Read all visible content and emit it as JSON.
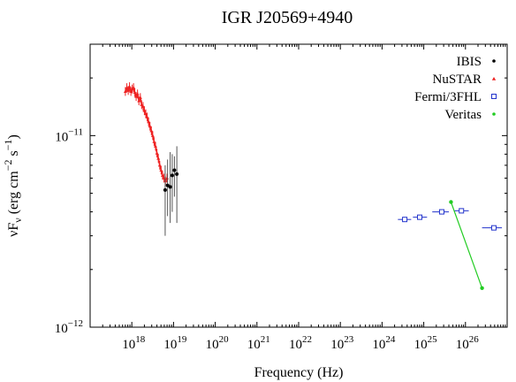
{
  "chart_data": {
    "type": "scatter",
    "title": "IGR J20569+4940",
    "xlabel": "Frequency (Hz)",
    "ylabel_main": "νF",
    "ylabel_sub": "ν",
    "ylabel_rest": " (erg cm",
    "ylabel_exp1": "−2",
    "ylabel_mid": " s",
    "ylabel_exp2": "−1",
    "ylabel_end": ")",
    "x_scale": "log",
    "y_scale": "log",
    "xlim": [
      1e+17,
      1e+27
    ],
    "ylim": [
      1e-12,
      3e-11
    ],
    "x_ticks": [
      {
        "value": 1e+18,
        "base": "10",
        "exp": "18"
      },
      {
        "value": 1e+19,
        "base": "10",
        "exp": "19"
      },
      {
        "value": 1e+20,
        "base": "10",
        "exp": "20"
      },
      {
        "value": 1e+21,
        "base": "10",
        "exp": "21"
      },
      {
        "value": 1e+22,
        "base": "10",
        "exp": "22"
      },
      {
        "value": 1e+23,
        "base": "10",
        "exp": "23"
      },
      {
        "value": 1e+24,
        "base": "10",
        "exp": "24"
      },
      {
        "value": 1e+25,
        "base": "10",
        "exp": "25"
      },
      {
        "value": 1e+26,
        "base": "10",
        "exp": "26"
      }
    ],
    "y_ticks": [
      {
        "value": 1e-12,
        "base": "10",
        "exp": "−12"
      },
      {
        "value": 1e-11,
        "base": "10",
        "exp": "−11"
      }
    ],
    "legend_position": "top-right",
    "series": [
      {
        "name": "IBIS",
        "color": "#000000",
        "marker": "dot",
        "points": [
          {
            "x": 6.3e+18,
            "y": 5.2e-12,
            "ylo": 3e-12,
            "yhi": 7e-12
          },
          {
            "x": 7.2e+18,
            "y": 5.5e-12,
            "ylo": 3.8e-12,
            "yhi": 7.5e-12
          },
          {
            "x": 8.3e+18,
            "y": 5.4e-12,
            "ylo": 3.5e-12,
            "yhi": 8.2e-12
          },
          {
            "x": 9.3e+18,
            "y": 6.2e-12,
            "ylo": 4e-12,
            "yhi": 8e-12
          },
          {
            "x": 1.05e+19,
            "y": 6.6e-12,
            "ylo": 4.8e-12,
            "yhi": 7.8e-12
          },
          {
            "x": 1.2e+19,
            "y": 6.3e-12,
            "ylo": 3.5e-12,
            "yhi": 8.8e-12
          }
        ]
      },
      {
        "name": "NuSTAR",
        "color": "#ee2222",
        "marker": "triangle",
        "points": [
          {
            "x": 7e+17,
            "y": 1.7e-11
          },
          {
            "x": 7.6e+17,
            "y": 1.78e-11
          },
          {
            "x": 8.2e+17,
            "y": 1.72e-11
          },
          {
            "x": 8.8e+17,
            "y": 1.8e-11
          },
          {
            "x": 9.5e+17,
            "y": 1.7e-11
          },
          {
            "x": 1.02e+18,
            "y": 1.75e-11
          },
          {
            "x": 1.1e+18,
            "y": 1.78e-11
          },
          {
            "x": 1.18e+18,
            "y": 1.68e-11
          },
          {
            "x": 1.27e+18,
            "y": 1.6e-11
          },
          {
            "x": 1.37e+18,
            "y": 1.65e-11
          },
          {
            "x": 1.48e+18,
            "y": 1.52e-11
          },
          {
            "x": 1.6e+18,
            "y": 1.58e-11
          },
          {
            "x": 1.72e+18,
            "y": 1.45e-11
          },
          {
            "x": 1.86e+18,
            "y": 1.42e-11
          },
          {
            "x": 2e+18,
            "y": 1.35e-11
          },
          {
            "x": 2.16e+18,
            "y": 1.3e-11
          },
          {
            "x": 2.33e+18,
            "y": 1.25e-11
          },
          {
            "x": 2.52e+18,
            "y": 1.18e-11
          },
          {
            "x": 2.72e+18,
            "y": 1.12e-11
          },
          {
            "x": 2.94e+18,
            "y": 1.06e-11
          },
          {
            "x": 3.17e+18,
            "y": 1e-11
          },
          {
            "x": 3.42e+18,
            "y": 9.3e-12
          },
          {
            "x": 3.7e+18,
            "y": 8.8e-12
          },
          {
            "x": 4e+18,
            "y": 8.1e-12
          },
          {
            "x": 4.32e+18,
            "y": 7.6e-12
          },
          {
            "x": 4.67e+18,
            "y": 7e-12
          },
          {
            "x": 5.04e+18,
            "y": 6.6e-12
          },
          {
            "x": 5.45e+18,
            "y": 6.2e-12
          },
          {
            "x": 5.9e+18,
            "y": 6e-12
          },
          {
            "x": 6.4e+18,
            "y": 5.8e-12
          },
          {
            "x": 7e+18,
            "y": 6e-12
          }
        ]
      },
      {
        "name": "Fermi/3FHL",
        "color": "#2233cc",
        "marker": "square",
        "points": [
          {
            "x": 3.5e+24,
            "y": 3.65e-12,
            "xlo": 2.4e+24,
            "xhi": 5e+24
          },
          {
            "x": 8e+24,
            "y": 3.75e-12,
            "xlo": 5.5e+24,
            "xhi": 1.2e+25
          },
          {
            "x": 2.7e+25,
            "y": 4e-12,
            "xlo": 1.6e+25,
            "xhi": 4e+25
          },
          {
            "x": 8e+25,
            "y": 4.05e-12,
            "xlo": 5.5e+25,
            "xhi": 1.2e+26
          },
          {
            "x": 4.8e+26,
            "y": 3.3e-12,
            "xlo": 2.5e+26,
            "xhi": 7.5e+26
          }
        ]
      },
      {
        "name": "Veritas",
        "color": "#22cc22",
        "marker": "dot",
        "connect": true,
        "points": [
          {
            "x": 4.5e+25,
            "y": 4.5e-12
          },
          {
            "x": 2.5e+26,
            "y": 1.6e-12
          }
        ]
      }
    ]
  }
}
